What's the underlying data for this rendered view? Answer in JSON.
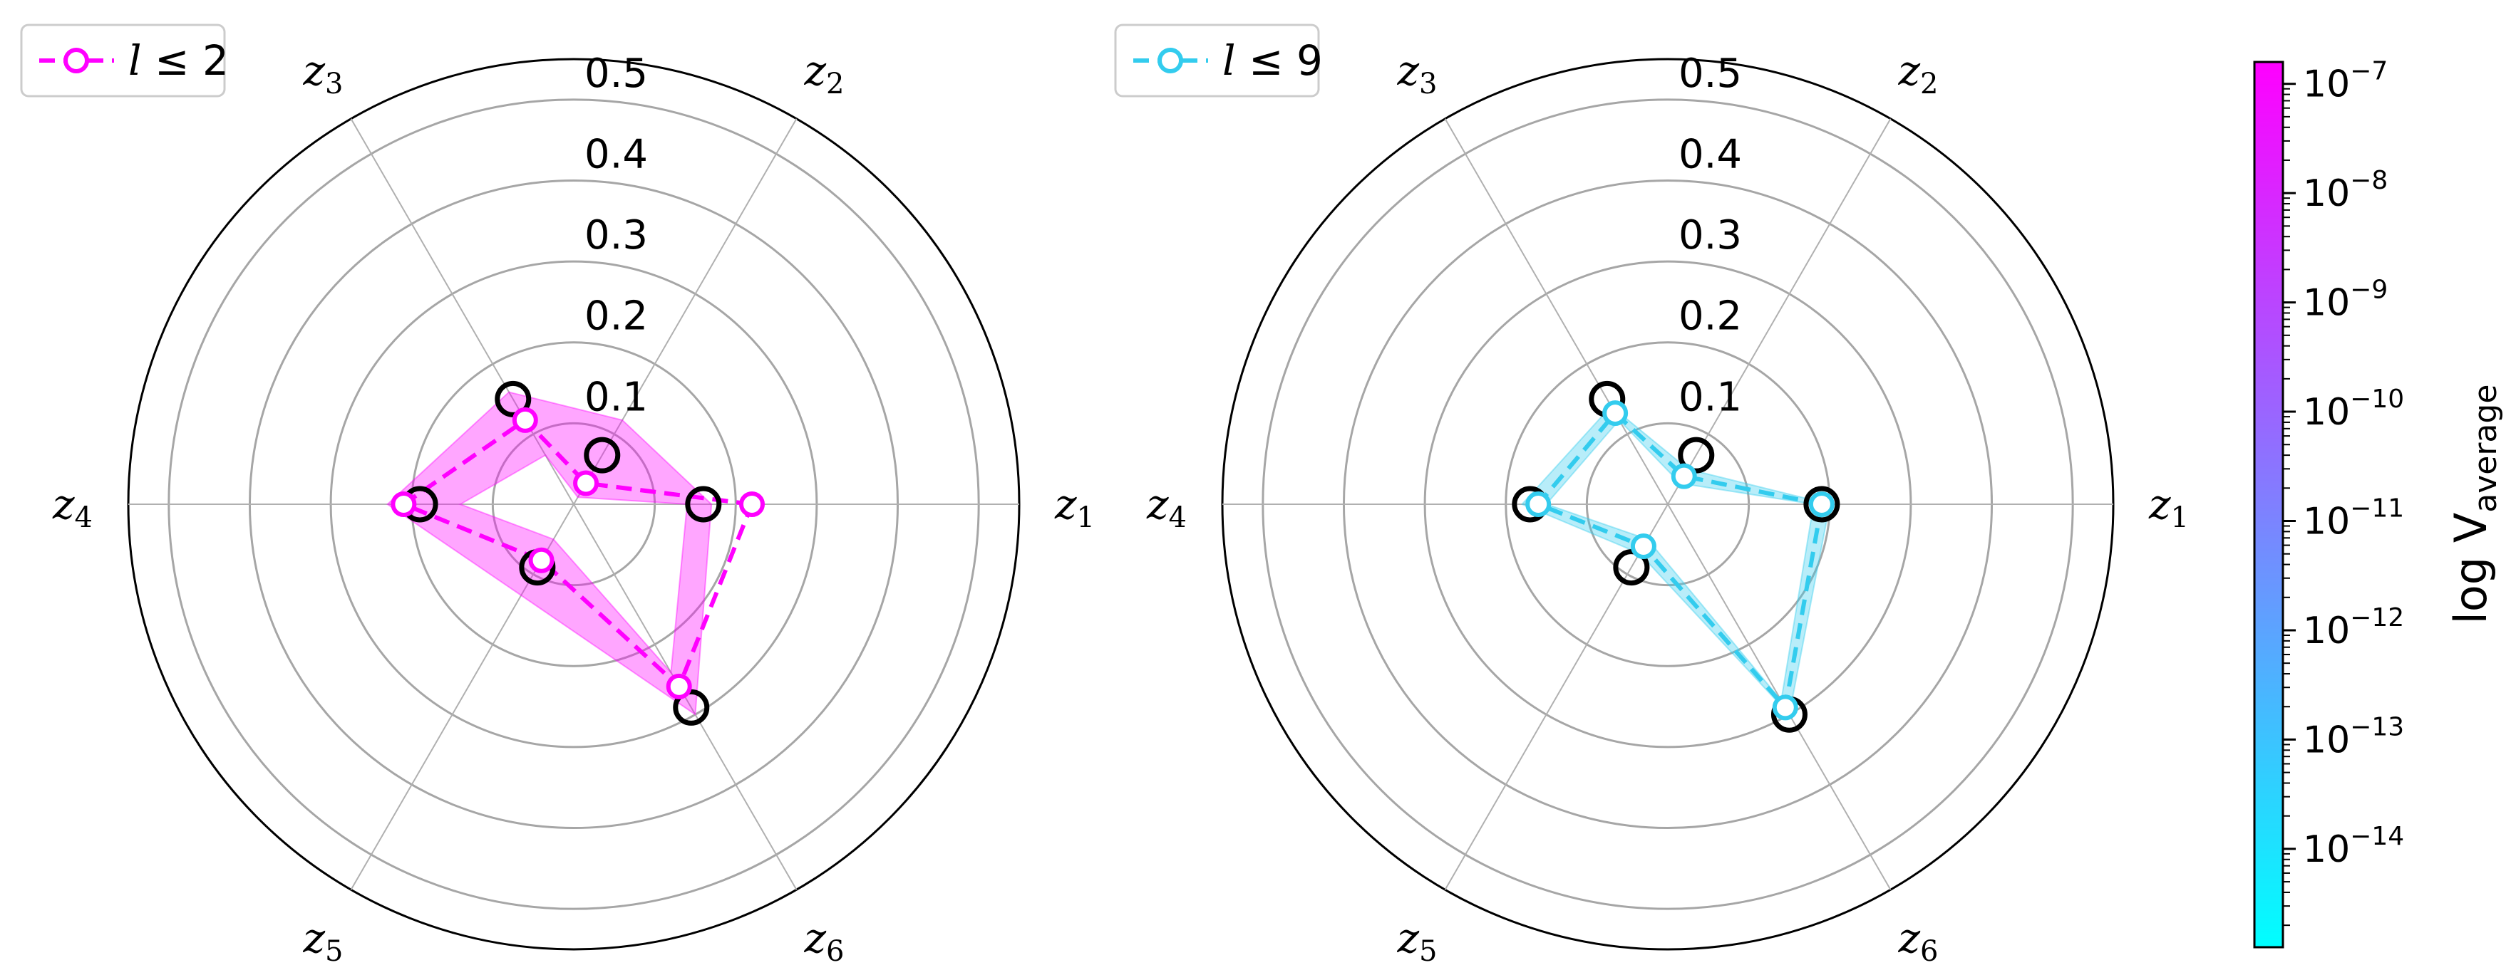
{
  "chart_data": {
    "type": "radar",
    "rlim": [
      0,
      0.55
    ],
    "radial_ticks": [
      "0.1",
      "0.2",
      "0.3",
      "0.4",
      "0.5"
    ],
    "radial_tick_values": [
      0.1,
      0.2,
      0.3,
      0.4,
      0.5
    ],
    "axes": [
      {
        "base": "z",
        "sub": "1",
        "angle_deg": 0
      },
      {
        "base": "z",
        "sub": "2",
        "angle_deg": 60
      },
      {
        "base": "z",
        "sub": "3",
        "angle_deg": 120
      },
      {
        "base": "z",
        "sub": "4",
        "angle_deg": 180
      },
      {
        "base": "z",
        "sub": "5",
        "angle_deg": 240
      },
      {
        "base": "z",
        "sub": "6",
        "angle_deg": 300
      }
    ],
    "panels": [
      {
        "legend": {
          "var": "l",
          "rel": " ≤ 2"
        },
        "color": "#ff00ff",
        "reference": [
          0.16,
          0.07,
          0.15,
          0.19,
          0.09,
          0.29
        ],
        "series": [
          0.22,
          0.03,
          0.12,
          0.21,
          0.08,
          0.26
        ],
        "band_low": [
          0.14,
          0.01,
          0.07,
          0.14,
          0.05,
          0.24
        ],
        "band_high": [
          0.17,
          0.12,
          0.16,
          0.23,
          0.13,
          0.3
        ]
      },
      {
        "legend": {
          "var": "l",
          "rel": " ≤ 9"
        },
        "color": "#33ccee",
        "reference": [
          0.19,
          0.07,
          0.15,
          0.17,
          0.09,
          0.3
        ],
        "series": [
          0.19,
          0.04,
          0.13,
          0.16,
          0.06,
          0.29
        ],
        "band_low": [
          0.18,
          0.03,
          0.12,
          0.15,
          0.05,
          0.28
        ],
        "band_high": [
          0.2,
          0.05,
          0.14,
          0.18,
          0.07,
          0.3
        ]
      }
    ],
    "colorbar": {
      "label": "log V",
      "label_sub": "average",
      "scale": "log",
      "range_exp": [
        -14.9,
        -6.8
      ],
      "colors": [
        "#00ffff",
        "#ff00ff"
      ],
      "ticks": [
        {
          "base": "10",
          "exp": "−14",
          "value_exp": -14
        },
        {
          "base": "10",
          "exp": "−13",
          "value_exp": -13
        },
        {
          "base": "10",
          "exp": "−12",
          "value_exp": -12
        },
        {
          "base": "10",
          "exp": "−11",
          "value_exp": -11
        },
        {
          "base": "10",
          "exp": "−10",
          "value_exp": -10
        },
        {
          "base": "10",
          "exp": "−9",
          "value_exp": -9
        },
        {
          "base": "10",
          "exp": "−8",
          "value_exp": -8
        },
        {
          "base": "10",
          "exp": "−7",
          "value_exp": -7
        }
      ]
    }
  }
}
